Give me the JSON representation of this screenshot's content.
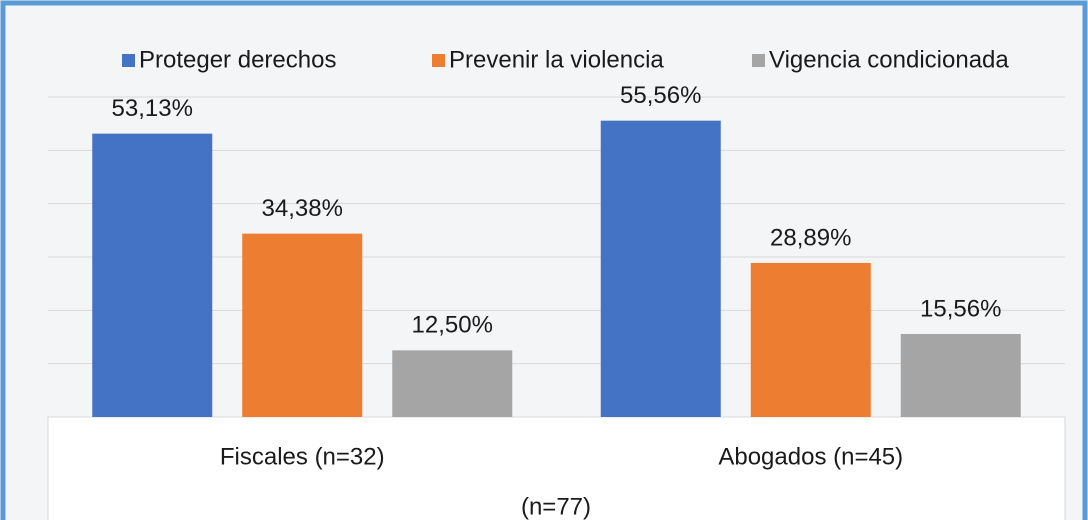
{
  "chart_data": {
    "type": "bar",
    "categories": [
      "Fiscales (n=32)",
      "Abogados (n=45)"
    ],
    "x_label": "(n=77)",
    "series": [
      {
        "name": "Proteger derechos",
        "color": "#4472c4",
        "values": [
          53.13,
          55.56
        ],
        "value_labels": [
          "53,13%",
          "55,56%"
        ]
      },
      {
        "name": "Prevenir la violencia",
        "color": "#ed7d31",
        "values": [
          34.38,
          28.89
        ],
        "value_labels": [
          "34,38%",
          "28,89%"
        ]
      },
      {
        "name": "Vigencia condicionada",
        "color": "#a5a5a5",
        "values": [
          12.5,
          15.56
        ],
        "value_labels": [
          "12,50%",
          "15,56%"
        ]
      }
    ],
    "ylim": [
      0,
      60
    ],
    "yticks": [
      0,
      10,
      20,
      30,
      40,
      50,
      60
    ],
    "grid": true,
    "legend": "top"
  }
}
